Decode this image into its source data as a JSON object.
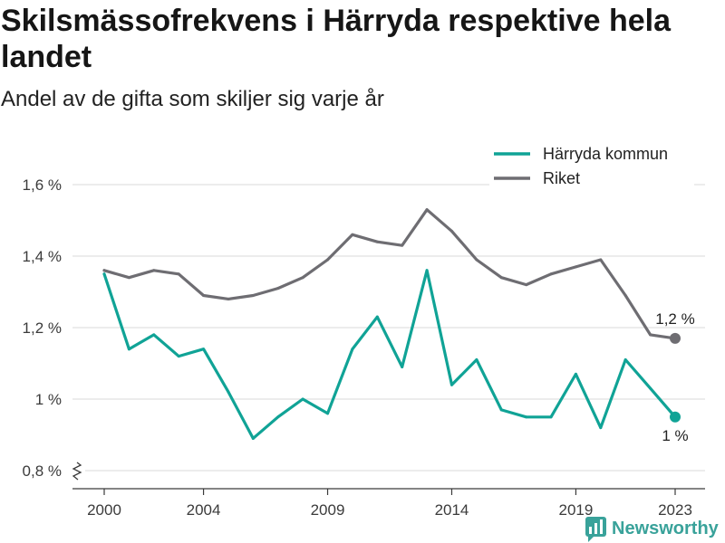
{
  "chart_data": {
    "type": "line",
    "title": "Skilsmässofrekvens i Härryda respektive hela landet",
    "subtitle": "Andel av de gifta som skiljer sig varje år",
    "x": [
      2000,
      2001,
      2002,
      2003,
      2004,
      2005,
      2006,
      2007,
      2008,
      2009,
      2010,
      2011,
      2012,
      2013,
      2014,
      2015,
      2016,
      2017,
      2018,
      2019,
      2020,
      2021,
      2022,
      2023
    ],
    "x_ticks": [
      2000,
      2004,
      2009,
      2014,
      2019,
      2023
    ],
    "y_ticks": [
      0.8,
      1.0,
      1.2,
      1.4,
      1.6
    ],
    "y_tick_labels": [
      "0,8 %",
      "1 %",
      "1,2 %",
      "1,4 %",
      "1,6 %"
    ],
    "ylim": [
      0.8,
      1.6
    ],
    "y_axis_break": true,
    "grid": true,
    "legend_position": "top-right",
    "series": [
      {
        "name": "Härryda kommun",
        "color": "#10a396",
        "values": [
          1.35,
          1.14,
          1.18,
          1.12,
          1.14,
          1.02,
          0.89,
          0.95,
          1.0,
          0.96,
          1.14,
          1.23,
          1.09,
          1.36,
          1.04,
          1.11,
          0.97,
          0.95,
          0.95,
          1.07,
          0.92,
          1.11,
          1.03,
          0.95
        ],
        "end_label": "1 %",
        "end_label_position": "below"
      },
      {
        "name": "Riket",
        "color": "#6e6d72",
        "values": [
          1.36,
          1.34,
          1.36,
          1.35,
          1.29,
          1.28,
          1.29,
          1.31,
          1.34,
          1.39,
          1.46,
          1.44,
          1.43,
          1.53,
          1.47,
          1.39,
          1.34,
          1.32,
          1.35,
          1.37,
          1.39,
          1.29,
          1.18,
          1.17
        ],
        "end_label": "1,2 %",
        "end_label_position": "above"
      }
    ]
  },
  "brand": {
    "name": "Newsworthy",
    "icon": "bar-chart-bubble-icon",
    "color": "#39a29a"
  }
}
